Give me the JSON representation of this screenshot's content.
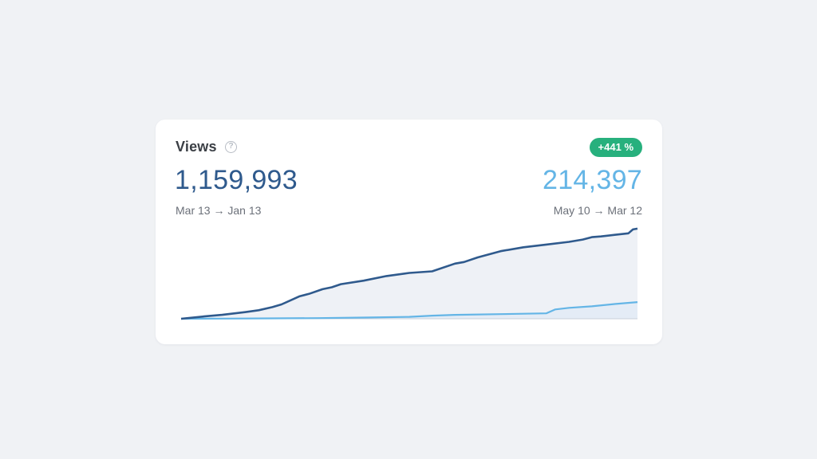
{
  "card": {
    "title": "Views",
    "help_glyph": "?",
    "change_badge": "+441 %",
    "total_value": "1,159,993",
    "total_range": "Mar 13 → Jan 13",
    "previous_value": "214,397",
    "previous_range": "May 10 → Mar 12"
  },
  "colors": {
    "current_line": "#2f5a8d",
    "previous_line": "#64b5e6",
    "badge_bg": "#27b07d",
    "area_fill": "#eef1f6"
  },
  "chart_data": {
    "type": "area",
    "title": "",
    "xlabel": "",
    "ylabel": "",
    "x_range": [
      0,
      100
    ],
    "ylim": [
      0,
      1200000
    ],
    "grid": false,
    "series": [
      {
        "name": "",
        "x": [
          0,
          5,
          9,
          14,
          17,
          20,
          22,
          26,
          28,
          31,
          33,
          35,
          40,
          45,
          50,
          55,
          60,
          62,
          65,
          70,
          75,
          80,
          85,
          88,
          90,
          92,
          95,
          98,
          99,
          100
        ],
        "y": [
          0,
          30000,
          50000,
          85000,
          110000,
          150000,
          185000,
          290000,
          320000,
          380000,
          405000,
          445000,
          490000,
          550000,
          590000,
          610000,
          710000,
          730000,
          790000,
          870000,
          920000,
          955000,
          990000,
          1020000,
          1050000,
          1060000,
          1080000,
          1100000,
          1150000,
          1159993
        ]
      },
      {
        "name": "",
        "x": [
          0,
          10,
          20,
          30,
          40,
          50,
          55,
          60,
          70,
          80,
          82,
          85,
          90,
          95,
          100
        ],
        "y": [
          0,
          2000,
          5000,
          8000,
          15000,
          25000,
          40000,
          50000,
          60000,
          70000,
          120000,
          140000,
          160000,
          190000,
          214397
        ]
      }
    ]
  }
}
